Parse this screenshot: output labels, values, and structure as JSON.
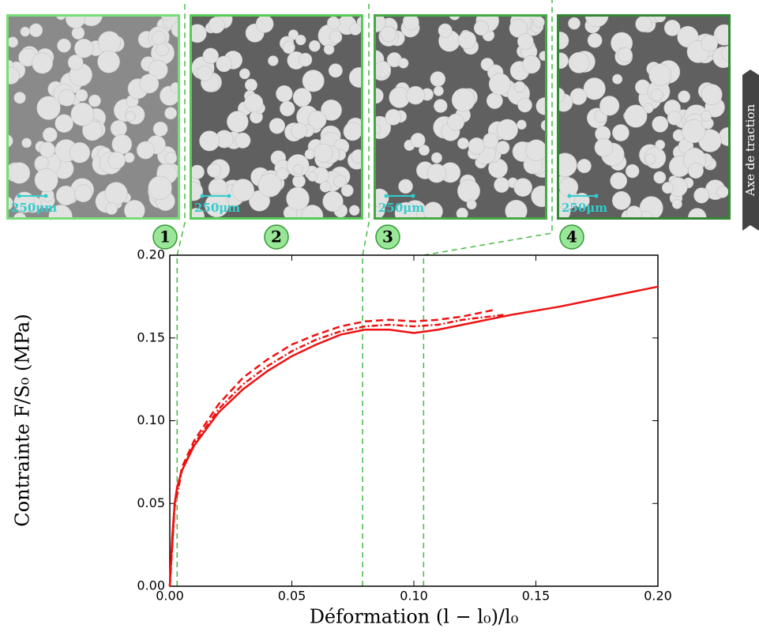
{
  "chart_data": {
    "type": "line",
    "xlabel": "Déformation (l − l₀)/l₀",
    "ylabel": "Contrainte F/S₀ (MPa)",
    "xlim": [
      0,
      0.2
    ],
    "ylim": [
      0,
      0.2
    ],
    "xticks": [
      {
        "value": 0,
        "label": "0.00"
      },
      {
        "value": 0.05,
        "label": "0.05"
      },
      {
        "value": 0.1,
        "label": "0.10"
      },
      {
        "value": 0.15,
        "label": "0.15"
      },
      {
        "value": 0.2,
        "label": "0.20"
      }
    ],
    "yticks": [
      {
        "value": 0,
        "label": "0.00"
      },
      {
        "value": 0.05,
        "label": "0.05"
      },
      {
        "value": 0.1,
        "label": "0.10"
      },
      {
        "value": 0.15,
        "label": "0.15"
      },
      {
        "value": 0.2,
        "label": "0.20"
      }
    ],
    "series": [
      {
        "color": "#ee1111",
        "style": "solid",
        "x": [
          0,
          0.001,
          0.002,
          0.003,
          0.005,
          0.01,
          0.02,
          0.03,
          0.04,
          0.05,
          0.06,
          0.07,
          0.08,
          0.09,
          0.1,
          0.11,
          0.12,
          0.14,
          0.16,
          0.18,
          0.2
        ],
        "values": [
          0,
          0.03,
          0.05,
          0.06,
          0.07,
          0.085,
          0.105,
          0.119,
          0.13,
          0.139,
          0.146,
          0.152,
          0.155,
          0.155,
          0.153,
          0.155,
          0.158,
          0.164,
          0.169,
          0.175,
          0.181
        ]
      },
      {
        "color": "#ee1111",
        "style": "dashed",
        "x": [
          0,
          0.002,
          0.005,
          0.01,
          0.02,
          0.03,
          0.04,
          0.05,
          0.06,
          0.07,
          0.08,
          0.09,
          0.1,
          0.11,
          0.12,
          0.133
        ],
        "values": [
          0,
          0.05,
          0.072,
          0.088,
          0.11,
          0.126,
          0.137,
          0.146,
          0.152,
          0.157,
          0.16,
          0.161,
          0.16,
          0.161,
          0.163,
          0.167
        ]
      },
      {
        "color": "#ee1111",
        "style": "dashdot",
        "x": [
          0,
          0.002,
          0.005,
          0.01,
          0.02,
          0.03,
          0.04,
          0.05,
          0.06,
          0.07,
          0.08,
          0.09,
          0.1,
          0.11,
          0.12,
          0.137
        ],
        "values": [
          0,
          0.048,
          0.07,
          0.086,
          0.107,
          0.122,
          0.133,
          0.142,
          0.149,
          0.154,
          0.157,
          0.158,
          0.157,
          0.158,
          0.161,
          0.164
        ]
      }
    ],
    "vlines": [
      0.003,
      0.079,
      0.104
    ],
    "vline_color": "#44bb44",
    "panels": [
      {
        "label": "1",
        "scale": "250μm"
      },
      {
        "label": "2",
        "scale": "250μm"
      },
      {
        "label": "3",
        "scale": "250μm"
      },
      {
        "label": "4",
        "scale": "250μm"
      }
    ],
    "side_label": "Axe de traction"
  }
}
